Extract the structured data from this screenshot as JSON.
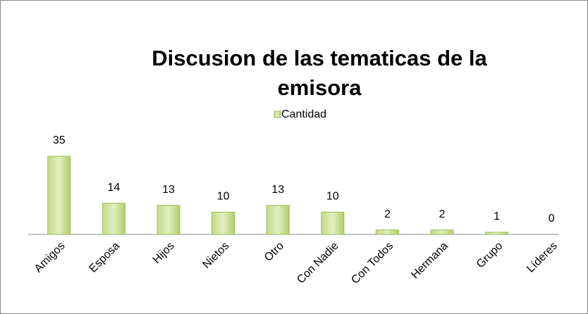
{
  "chart_data": {
    "type": "bar",
    "title": "Discusion de las tematicas de la emisora",
    "categories": [
      "Amigos",
      "Esposa",
      "Hijos",
      "Nietos",
      "Otro",
      "Con Nadie",
      "Con Todos",
      "Hermana",
      "Grupo",
      "Líderes"
    ],
    "series": [
      {
        "name": "Cantidad",
        "color": "#9bbb59",
        "values": [
          35,
          14,
          13,
          10,
          13,
          10,
          2,
          2,
          1,
          0
        ]
      }
    ],
    "legend": "top"
  }
}
